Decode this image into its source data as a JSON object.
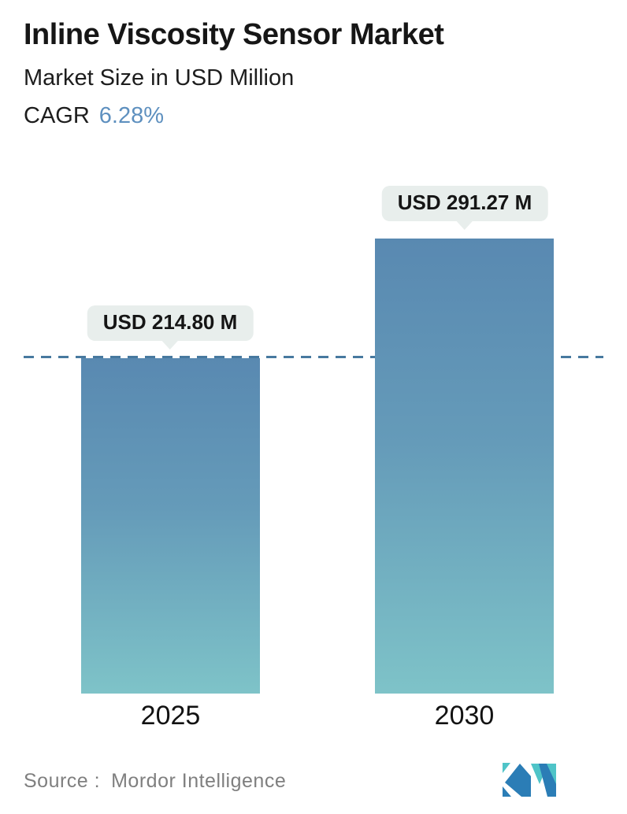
{
  "header": {
    "title": "Inline Viscosity Sensor Market",
    "subtitle": "Market Size in USD Million",
    "cagr_label": "CAGR",
    "cagr_value": "6.28%"
  },
  "chart_data": {
    "type": "bar",
    "title": "Inline Viscosity Sensor Market",
    "unit": "USD Million",
    "categories": [
      "2025",
      "2030"
    ],
    "values": [
      214.8,
      291.27
    ],
    "value_labels": [
      "USD 214.80 M",
      "USD 291.27 M"
    ],
    "cagr_percent": 6.28,
    "ylim": [
      0,
      305
    ],
    "grid": false,
    "legend": "none",
    "reference_line": {
      "style": "dashed",
      "value": 214.8
    },
    "bar_color_top": "#5989b1",
    "bar_color_bottom": "#7ec3c8"
  },
  "footer": {
    "source_label": "Source :",
    "source_name": "Mordor Intelligence"
  },
  "colors": {
    "accent_text_blue": "#5e90bf",
    "dashed_line": "#47799f",
    "callout_background": "#e8eeec",
    "logo_blue": "#2b7db6",
    "logo_teal": "#4fc4c8"
  }
}
